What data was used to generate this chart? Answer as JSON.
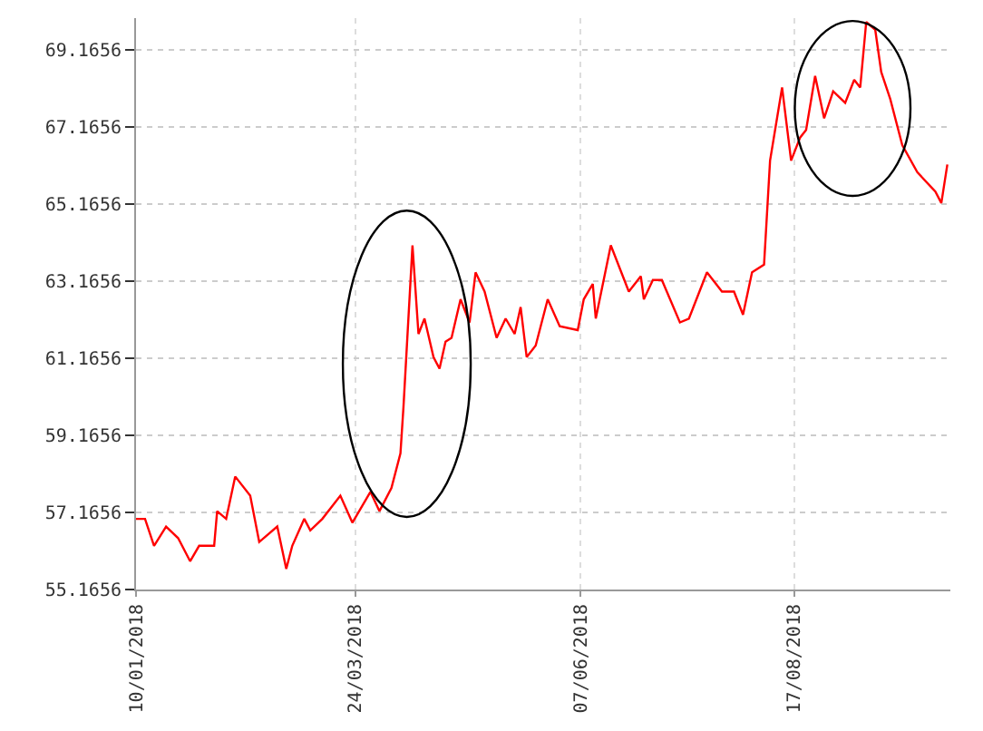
{
  "chart_data": {
    "type": "line",
    "x": [
      "2018-01-10",
      "2018-01-13",
      "2018-01-16",
      "2018-01-20",
      "2018-01-24",
      "2018-01-28",
      "2018-01-31",
      "2018-02-05",
      "2018-02-06",
      "2018-02-09",
      "2018-02-12",
      "2018-02-17",
      "2018-02-20",
      "2018-02-26",
      "2018-03-01",
      "2018-03-03",
      "2018-03-07",
      "2018-03-09",
      "2018-03-13",
      "2018-03-19",
      "2018-03-23",
      "2018-03-29",
      "2018-04-01",
      "2018-04-05",
      "2018-04-08",
      "2018-04-09",
      "2018-04-12",
      "2018-04-14",
      "2018-04-16",
      "2018-04-19",
      "2018-04-21",
      "2018-04-23",
      "2018-04-25",
      "2018-04-28",
      "2018-05-01",
      "2018-05-03",
      "2018-05-06",
      "2018-05-10",
      "2018-05-13",
      "2018-05-16",
      "2018-05-18",
      "2018-05-20",
      "2018-05-23",
      "2018-05-27",
      "2018-05-31",
      "2018-06-06",
      "2018-06-08",
      "2018-06-11",
      "2018-06-12",
      "2018-06-17",
      "2018-06-23",
      "2018-06-27",
      "2018-06-28",
      "2018-07-01",
      "2018-07-04",
      "2018-07-10",
      "2018-07-13",
      "2018-07-19",
      "2018-07-24",
      "2018-07-28",
      "2018-07-31",
      "2018-08-03",
      "2018-08-07",
      "2018-08-09",
      "2018-08-13",
      "2018-08-16",
      "2018-08-19",
      "2018-08-21",
      "2018-08-24",
      "2018-08-27",
      "2018-08-30",
      "2018-09-03",
      "2018-09-06",
      "2018-09-08",
      "2018-09-10",
      "2018-09-13",
      "2018-09-15",
      "2018-09-18",
      "2018-09-22",
      "2018-09-27",
      "2018-10-03",
      "2018-10-05",
      "2018-10-07"
    ],
    "series": [
      {
        "color": "#ff0000",
        "values": [
          57.0,
          57.0,
          56.3,
          56.8,
          56.5,
          55.9,
          56.3,
          56.3,
          57.2,
          57.0,
          58.1,
          57.6,
          56.4,
          56.8,
          55.7,
          56.3,
          57.0,
          56.7,
          57.0,
          57.6,
          56.9,
          57.7,
          57.2,
          57.8,
          58.7,
          59.9,
          64.1,
          61.8,
          62.2,
          61.2,
          60.9,
          61.6,
          61.7,
          62.7,
          62.1,
          63.4,
          62.9,
          61.7,
          62.2,
          61.8,
          62.5,
          61.2,
          61.5,
          62.7,
          62.0,
          61.9,
          62.7,
          63.1,
          62.2,
          64.1,
          62.9,
          63.3,
          62.7,
          63.2,
          63.2,
          62.1,
          62.2,
          63.4,
          62.9,
          62.9,
          62.3,
          63.4,
          63.6,
          66.3,
          68.2,
          66.3,
          66.9,
          67.1,
          68.5,
          67.4,
          68.1,
          67.8,
          68.4,
          68.2,
          69.9,
          69.7,
          68.6,
          67.9,
          66.7,
          66.0,
          65.5,
          65.2,
          66.2
        ]
      }
    ],
    "xlim": [
      "2018-01-10",
      "2018-10-08"
    ],
    "xticks": [
      {
        "value": "2018-01-10",
        "label": "10/01/2018"
      },
      {
        "value": "2018-03-24",
        "label": "24/03/2018"
      },
      {
        "value": "2018-06-07",
        "label": "07/06/2018"
      },
      {
        "value": "2018-08-17",
        "label": "17/08/2018"
      }
    ],
    "ylim": [
      55.1656,
      70.0
    ],
    "yticks": [
      55.1656,
      57.1656,
      59.1656,
      61.1656,
      63.1656,
      65.1656,
      67.1656,
      69.1656
    ],
    "grid": true,
    "marker": "none",
    "line_style": "solid"
  }
}
